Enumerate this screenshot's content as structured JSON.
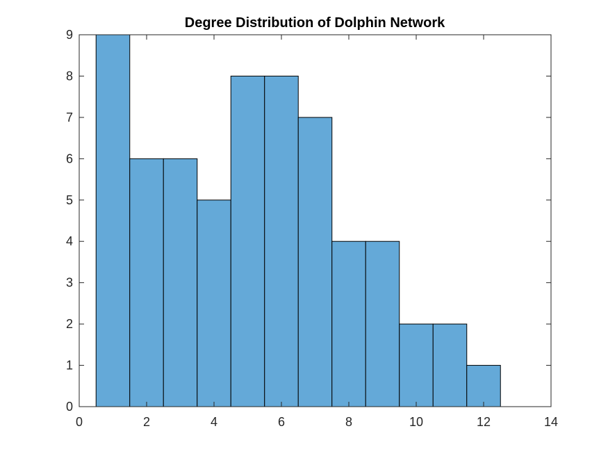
{
  "chart_data": {
    "type": "bar",
    "title": "Degree Distribution of Dolphin Network",
    "xlabel": "",
    "ylabel": "",
    "x": [
      1,
      2,
      3,
      4,
      5,
      6,
      7,
      8,
      9,
      10,
      11,
      12
    ],
    "values": [
      9,
      6,
      6,
      5,
      8,
      8,
      7,
      4,
      4,
      2,
      2,
      1
    ],
    "bin_width": 1,
    "xlim": [
      0,
      14
    ],
    "ylim": [
      0,
      9
    ],
    "xticks": [
      0,
      2,
      4,
      6,
      8,
      10,
      12,
      14
    ],
    "yticks": [
      0,
      1,
      2,
      3,
      4,
      5,
      6,
      7,
      8,
      9
    ],
    "grid": false,
    "bar_color": "#64a9d8",
    "edge_color": "#000000"
  }
}
